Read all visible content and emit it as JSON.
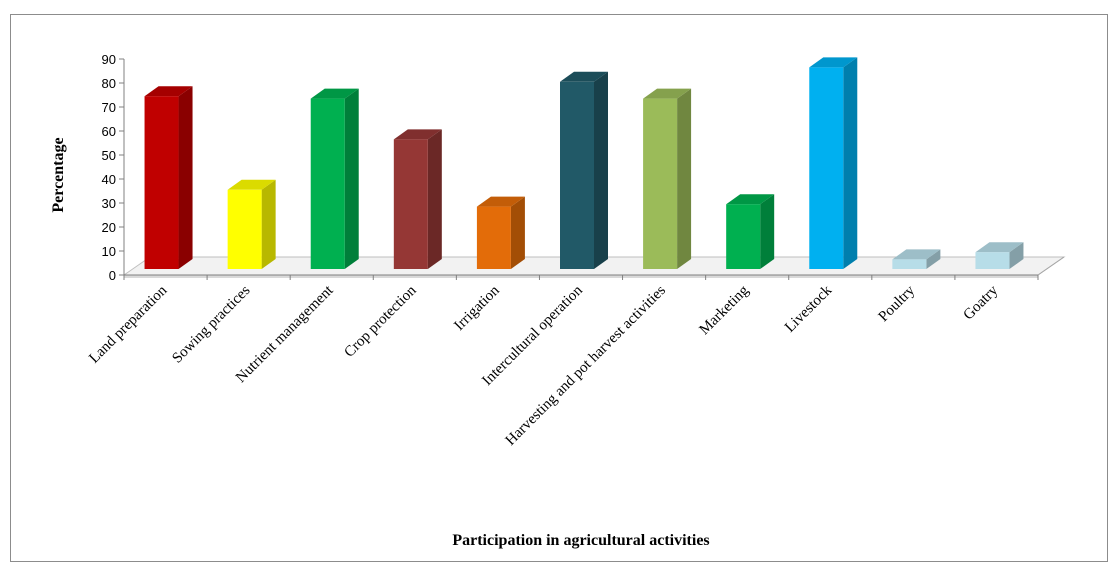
{
  "chart_data": {
    "type": "bar",
    "title": "",
    "xlabel": "Participation in agricultural activities",
    "ylabel": "Percentage",
    "ylim": [
      0,
      90
    ],
    "yticks": [
      0,
      10,
      20,
      30,
      40,
      50,
      60,
      70,
      80,
      90
    ],
    "grid": false,
    "legend": "none",
    "categories": [
      "Land preparation",
      "Sowing practices",
      "Nutrient management",
      "Crop protection",
      "Irrigation",
      "Intercultural operation",
      "Harvesting and pot harvest activities",
      "Marketing",
      "Livestock",
      "Poultry",
      "Goatry"
    ],
    "values": [
      72,
      33,
      71,
      54,
      26,
      78,
      71,
      27,
      84,
      4,
      7
    ],
    "colors": [
      "#c00000",
      "#ffff00",
      "#00b050",
      "#953735",
      "#e36c09",
      "#215967",
      "#9bbb59",
      "#00b050",
      "#00b0f0",
      "#b7dde8",
      "#b7dde8"
    ]
  }
}
